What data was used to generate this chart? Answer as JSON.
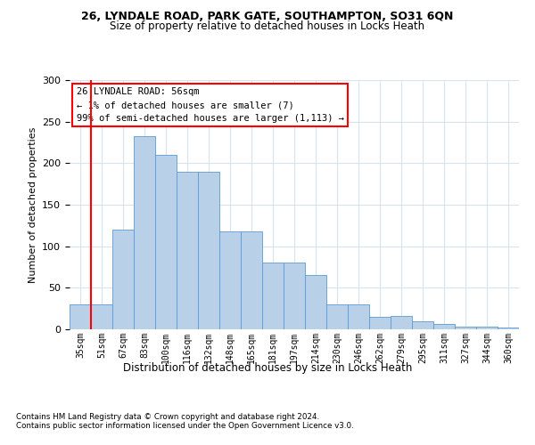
{
  "title1": "26, LYNDALE ROAD, PARK GATE, SOUTHAMPTON, SO31 6QN",
  "title2": "Size of property relative to detached houses in Locks Heath",
  "xlabel": "Distribution of detached houses by size in Locks Heath",
  "ylabel": "Number of detached properties",
  "categories": [
    "35sqm",
    "51sqm",
    "67sqm",
    "83sqm",
    "100sqm",
    "116sqm",
    "132sqm",
    "148sqm",
    "165sqm",
    "181sqm",
    "197sqm",
    "214sqm",
    "230sqm",
    "246sqm",
    "262sqm",
    "279sqm",
    "295sqm",
    "311sqm",
    "327sqm",
    "344sqm",
    "360sqm"
  ],
  "values": [
    30,
    30,
    120,
    232,
    210,
    190,
    190,
    118,
    118,
    80,
    80,
    65,
    30,
    30,
    15,
    16,
    10,
    6,
    3,
    3,
    2
  ],
  "bar_color": "#b8d0e8",
  "bar_edge_color": "#5b9bd5",
  "grid_color": "#d9e2ef",
  "red_line_x": 0.5,
  "annotation_title": "26 LYNDALE ROAD: 56sqm",
  "annotation_line1": "← 1% of detached houses are smaller (7)",
  "annotation_line2": "99% of semi-detached houses are larger (1,113) →",
  "footnote1": "Contains HM Land Registry data © Crown copyright and database right 2024.",
  "footnote2": "Contains public sector information licensed under the Open Government Licence v3.0.",
  "ylim": [
    0,
    300
  ],
  "yticks": [
    0,
    50,
    100,
    150,
    200,
    250,
    300
  ],
  "figsize": [
    6.0,
    5.0
  ],
  "dpi": 100
}
